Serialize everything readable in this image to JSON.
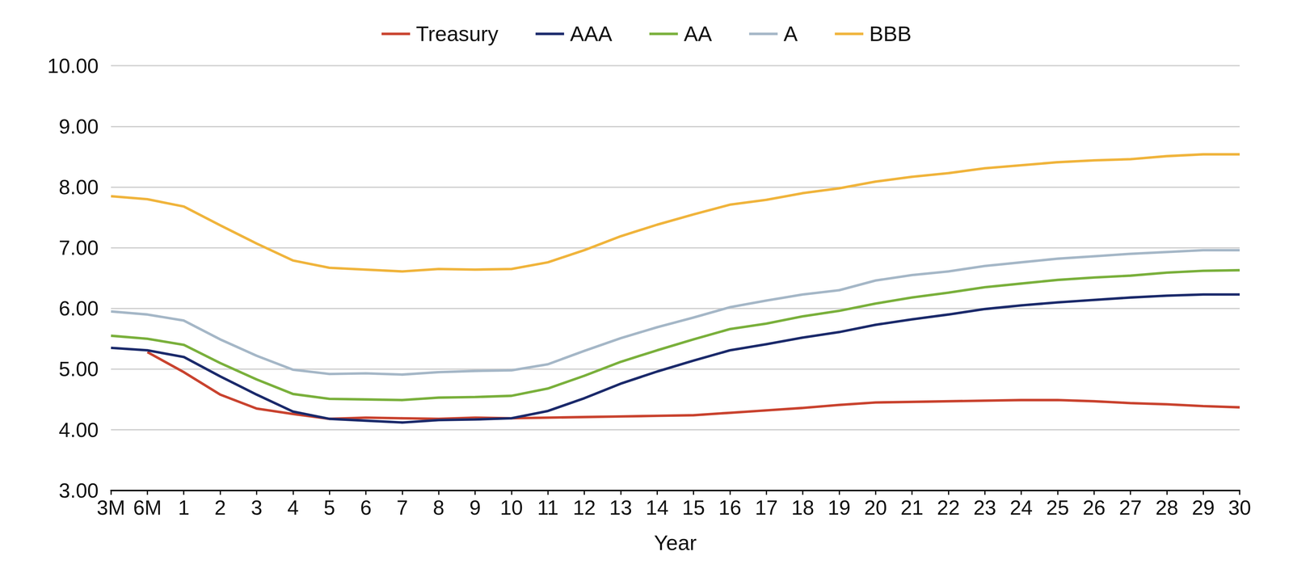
{
  "chart_data": {
    "type": "line",
    "x_label": "Year",
    "categories": [
      "3M",
      "6M",
      "1",
      "2",
      "3",
      "4",
      "5",
      "6",
      "7",
      "8",
      "9",
      "10",
      "11",
      "12",
      "13",
      "14",
      "15",
      "16",
      "17",
      "18",
      "19",
      "20",
      "21",
      "22",
      "23",
      "24",
      "25",
      "26",
      "27",
      "28",
      "29",
      "30"
    ],
    "series": [
      {
        "name": "Treasury",
        "color": "#c9432f",
        "values": [
          null,
          5.28,
          4.95,
          4.58,
          4.35,
          4.26,
          4.18,
          4.2,
          4.19,
          4.18,
          4.2,
          4.19,
          4.2,
          4.21,
          4.22,
          4.23,
          4.24,
          4.28,
          4.32,
          4.36,
          4.41,
          4.45,
          4.46,
          4.47,
          4.48,
          4.49,
          4.49,
          4.47,
          4.44,
          4.42,
          4.39,
          4.37
        ]
      },
      {
        "name": "AAA",
        "color": "#1b2a6b",
        "values": [
          5.35,
          5.31,
          5.2,
          4.88,
          4.58,
          4.3,
          4.18,
          4.15,
          4.12,
          4.16,
          4.17,
          4.19,
          4.31,
          4.52,
          4.76,
          4.96,
          5.14,
          5.31,
          5.41,
          5.52,
          5.61,
          5.73,
          5.82,
          5.9,
          5.99,
          6.05,
          6.1,
          6.14,
          6.18,
          6.21,
          6.23,
          6.23
        ]
      },
      {
        "name": "AA",
        "color": "#7ab03c",
        "values": [
          5.55,
          5.5,
          5.4,
          5.1,
          4.83,
          4.59,
          4.51,
          4.5,
          4.49,
          4.53,
          4.54,
          4.56,
          4.68,
          4.89,
          5.12,
          5.31,
          5.49,
          5.66,
          5.75,
          5.87,
          5.96,
          6.08,
          6.18,
          6.26,
          6.35,
          6.41,
          6.47,
          6.51,
          6.54,
          6.59,
          6.62,
          6.63
        ]
      },
      {
        "name": "A",
        "color": "#a5b7c7",
        "values": [
          5.95,
          5.9,
          5.8,
          5.49,
          5.22,
          4.99,
          4.92,
          4.93,
          4.91,
          4.95,
          4.97,
          4.98,
          5.08,
          5.3,
          5.51,
          5.69,
          5.85,
          6.02,
          6.13,
          6.23,
          6.3,
          6.46,
          6.55,
          6.61,
          6.7,
          6.76,
          6.82,
          6.86,
          6.9,
          6.93,
          6.96,
          6.96
        ]
      },
      {
        "name": "BBB",
        "color": "#f0b43c",
        "values": [
          7.85,
          7.8,
          7.68,
          7.37,
          7.07,
          6.79,
          6.67,
          6.64,
          6.61,
          6.65,
          6.64,
          6.65,
          6.76,
          6.96,
          7.19,
          7.38,
          7.55,
          7.71,
          7.79,
          7.9,
          7.98,
          8.09,
          8.17,
          8.23,
          8.31,
          8.36,
          8.41,
          8.44,
          8.46,
          8.51,
          8.54,
          8.54
        ]
      }
    ],
    "ylim": [
      3,
      10
    ],
    "yticks": [
      {
        "value": 3,
        "label": "3.00"
      },
      {
        "value": 4,
        "label": "4.00"
      },
      {
        "value": 5,
        "label": "5.00"
      },
      {
        "value": 6,
        "label": "6.00"
      },
      {
        "value": 7,
        "label": "7.00"
      },
      {
        "value": 8,
        "label": "8.00"
      },
      {
        "value": 9,
        "label": "9.00"
      },
      {
        "value": 10,
        "label": "10.00"
      }
    ],
    "grid": true,
    "legend": "top"
  }
}
